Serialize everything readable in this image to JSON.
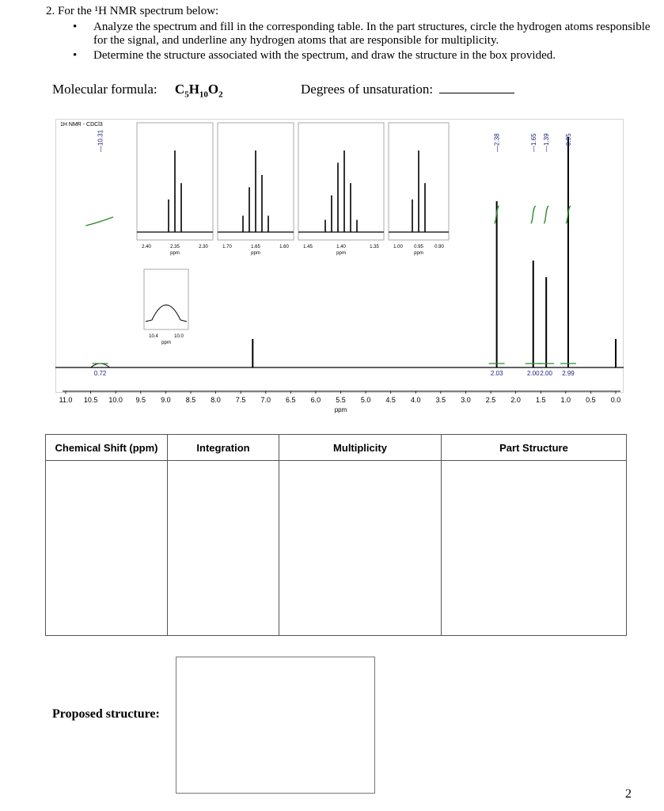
{
  "question": {
    "heading": "2. For the ¹H NMR spectrum below:",
    "bullets": [
      "Analyze the spectrum and fill in the corresponding table. In the part structures, circle the hydrogen atoms responsible for the signal, and underline any hydrogen atoms that are responsible for multiplicity.",
      "Determine the structure associated with the spectrum, and draw the structure in the box provided."
    ],
    "molecular_formula_label": "Molecular formula:",
    "molecular_formula": "C5H10O2",
    "unsaturation_label": "Degrees of unsaturation:"
  },
  "chart_data": {
    "type": "line",
    "title": "1H NMR - CDCl3",
    "xlabel": "ppm",
    "xlim": [
      11.0,
      0.0
    ],
    "x_ticks": [
      "11.0",
      "10.5",
      "10.0",
      "9.5",
      "9.0",
      "8.5",
      "8.0",
      "7.5",
      "7.0",
      "6.5",
      "6.0",
      "5.5",
      "5.0",
      "4.5",
      "4.0",
      "3.5",
      "3.0",
      "2.5",
      "2.0",
      "1.5",
      "1.0",
      "0.5",
      "0.0"
    ],
    "peak_labels": [
      "10.31",
      "2.38",
      "1.65",
      "1.39",
      "0.95"
    ],
    "peaks": [
      {
        "ppm": 10.31,
        "height": 0.04,
        "shape": "broad"
      },
      {
        "ppm": 7.26,
        "height": 0.12
      },
      {
        "ppm": 2.38,
        "height": 0.7
      },
      {
        "ppm": 1.65,
        "height": 0.45
      },
      {
        "ppm": 1.39,
        "height": 0.38
      },
      {
        "ppm": 0.95,
        "height": 0.97
      },
      {
        "ppm": 0.0,
        "height": 0.12
      }
    ],
    "integrations": [
      {
        "ppm": 10.31,
        "label": "0.72"
      },
      {
        "ppm": 2.38,
        "label": "2.03"
      },
      {
        "ppm": 1.65,
        "label": "2.00"
      },
      {
        "ppm": 1.39,
        "label": "2.00"
      },
      {
        "ppm": 0.95,
        "label": "2.99"
      }
    ],
    "insets": [
      {
        "multiplicity": "triplet",
        "ticks": [
          "2.40",
          "2.35",
          "2.30"
        ],
        "xlabel": "ppm"
      },
      {
        "multiplicity": "quintet",
        "ticks": [
          "1.70",
          "1.65",
          "1.60"
        ],
        "xlabel": "ppm"
      },
      {
        "multiplicity": "sextet",
        "ticks": [
          "1.45",
          "1.40",
          "1.35"
        ],
        "xlabel": "ppm"
      },
      {
        "multiplicity": "triplet",
        "ticks": [
          "1.00",
          "0.95",
          "0.90"
        ],
        "xlabel": "ppm"
      },
      {
        "multiplicity": "broad",
        "ticks": [
          "10.4",
          "10.0"
        ],
        "xlabel": "ppm"
      }
    ],
    "colors": {
      "line": "#000000",
      "integral": "#2e8b2e",
      "label": "#1a237e"
    }
  },
  "table": {
    "headers": [
      "Chemical Shift (ppm)",
      "Integration",
      "Multiplicity",
      "Part Structure"
    ]
  },
  "proposed_structure_label": "Proposed structure:",
  "page_number": "2"
}
